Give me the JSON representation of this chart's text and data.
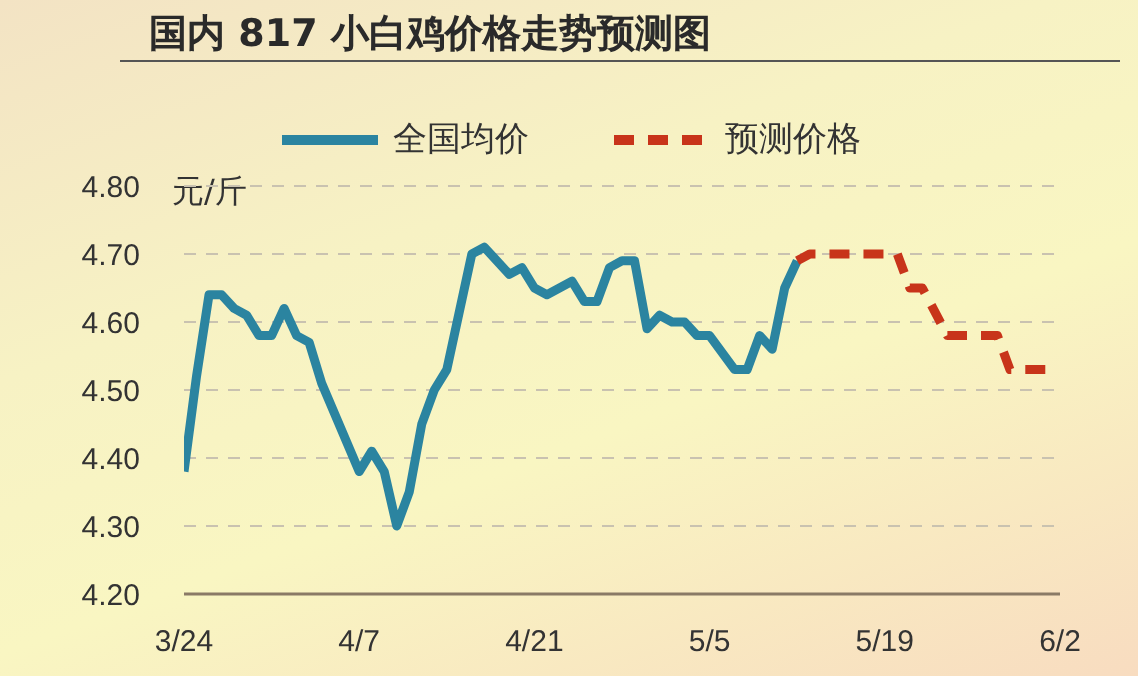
{
  "chart_data": {
    "type": "line",
    "title": "国内 817 小白鸡价格走势预测图",
    "ylabel": "元/斤",
    "xlim": [
      "--03-24",
      "--06-02"
    ],
    "xticks": [
      {
        "value": "--03-24",
        "label": "3/24"
      },
      {
        "value": "--04-07",
        "label": "4/7"
      },
      {
        "value": "--04-21",
        "label": "4/21"
      },
      {
        "value": "--05-05",
        "label": "5/5"
      },
      {
        "value": "--05-19",
        "label": "5/19"
      },
      {
        "value": "--06-02",
        "label": "6/2"
      }
    ],
    "ylim": [
      4.2,
      4.8
    ],
    "yticks": [
      {
        "value": 4.2,
        "label": "4.20"
      },
      {
        "value": 4.3,
        "label": "4.30"
      },
      {
        "value": 4.4,
        "label": "4.40"
      },
      {
        "value": 4.5,
        "label": "4.50"
      },
      {
        "value": 4.6,
        "label": "4.60"
      },
      {
        "value": 4.7,
        "label": "4.70"
      },
      {
        "value": 4.8,
        "label": "4.80"
      }
    ],
    "grid": "y",
    "legend": "top",
    "marker": "none",
    "series": [
      {
        "name": "全国均价",
        "color": "#2b84a0",
        "line_style": "solid",
        "x": [
          "--03-24",
          "--03-25",
          "--03-26",
          "--03-27",
          "--03-28",
          "--03-29",
          "--03-30",
          "--03-31",
          "--04-01",
          "--04-02",
          "--04-03",
          "--04-04",
          "--04-07",
          "--04-08",
          "--04-09",
          "--04-10",
          "--04-11",
          "--04-12",
          "--04-13",
          "--04-14",
          "--04-16",
          "--04-17",
          "--04-19",
          "--04-20",
          "--04-21",
          "--04-22",
          "--04-24",
          "--04-25",
          "--04-26",
          "--04-27",
          "--04-28",
          "--04-29",
          "--04-30",
          "--05-01",
          "--05-02",
          "--05-03",
          "--05-04",
          "--05-05",
          "--05-07",
          "--05-08",
          "--05-09",
          "--05-10",
          "--05-11",
          "--05-12"
        ],
        "values": [
          4.38,
          4.52,
          4.64,
          4.64,
          4.62,
          4.61,
          4.58,
          4.58,
          4.62,
          4.58,
          4.57,
          4.51,
          4.38,
          4.41,
          4.38,
          4.3,
          4.35,
          4.45,
          4.5,
          4.53,
          4.7,
          4.71,
          4.67,
          4.68,
          4.65,
          4.64,
          4.66,
          4.63,
          4.63,
          4.68,
          4.69,
          4.69,
          4.59,
          4.61,
          4.6,
          4.6,
          4.58,
          4.58,
          4.53,
          4.53,
          4.58,
          4.56,
          4.65,
          4.69
        ]
      },
      {
        "name": "预测价格",
        "color": "#c8341a",
        "line_style": "dashed",
        "x": [
          "--05-12",
          "--05-13",
          "--05-20",
          "--05-21",
          "--05-22",
          "--05-24",
          "--05-28",
          "--05-29",
          "--06-01"
        ],
        "values": [
          4.69,
          4.7,
          4.7,
          4.65,
          4.65,
          4.58,
          4.58,
          4.53,
          4.53
        ]
      }
    ]
  }
}
